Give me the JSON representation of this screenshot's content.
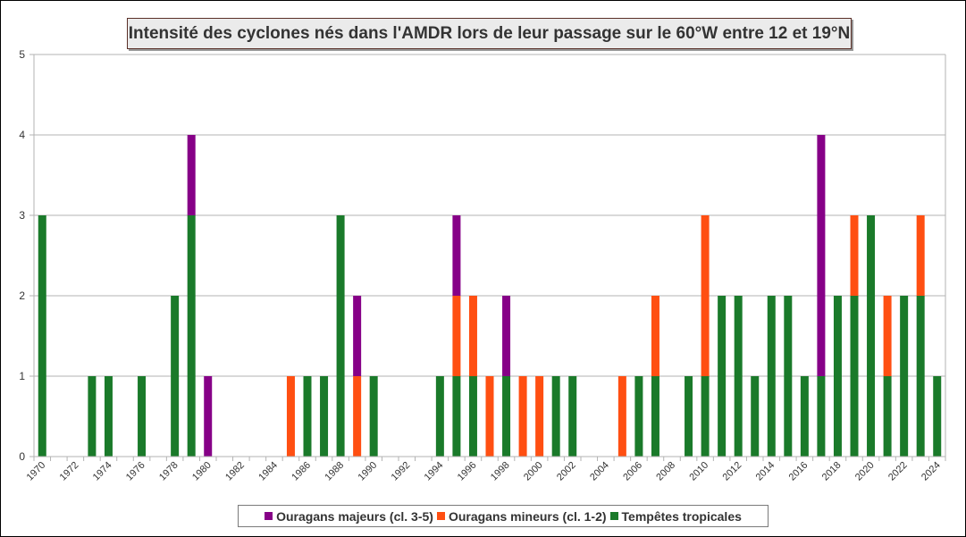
{
  "chart_data": {
    "type": "bar",
    "stacked": true,
    "title": "Intensité des cyclones nés dans l'AMDR lors de leur passage sur le 60°W entre 12 et 19°N",
    "xlabel": "",
    "ylabel": "",
    "ylim": [
      0,
      5
    ],
    "yticks": [
      "0",
      "1",
      "2",
      "3",
      "4",
      "5"
    ],
    "grid": true,
    "legend_position": "bottom",
    "categories": [
      "1970",
      "1971",
      "1972",
      "1973",
      "1974",
      "1975",
      "1976",
      "1977",
      "1978",
      "1979",
      "1980",
      "1981",
      "1982",
      "1983",
      "1984",
      "1985",
      "1986",
      "1987",
      "1988",
      "1989",
      "1990",
      "1991",
      "1992",
      "1993",
      "1994",
      "1995",
      "1996",
      "1997",
      "1998",
      "1999",
      "2000",
      "2001",
      "2002",
      "2003",
      "2004",
      "2005",
      "2006",
      "2007",
      "2008",
      "2009",
      "2010",
      "2011",
      "2012",
      "2013",
      "2014",
      "2015",
      "2016",
      "2017",
      "2018",
      "2019",
      "2020",
      "2021",
      "2022",
      "2023",
      "2024"
    ],
    "xtick_labels": [
      "1970",
      "1972",
      "1974",
      "1976",
      "1978",
      "1980",
      "1982",
      "1984",
      "1986",
      "1988",
      "1990",
      "1992",
      "1994",
      "1996",
      "1998",
      "2000",
      "2002",
      "2004",
      "2006",
      "2008",
      "2010",
      "2012",
      "2014",
      "2016",
      "2018",
      "2020",
      "2022",
      "2024"
    ],
    "series": [
      {
        "name": "Tempêtes tropicales",
        "color": "#1a7a2a",
        "values": [
          3,
          0,
          0,
          1,
          1,
          0,
          1,
          0,
          2,
          3,
          0,
          0,
          0,
          0,
          0,
          0,
          1,
          1,
          3,
          0,
          1,
          0,
          0,
          0,
          1,
          1,
          1,
          0,
          1,
          0,
          0,
          1,
          1,
          0,
          0,
          0,
          1,
          1,
          0,
          1,
          1,
          2,
          2,
          1,
          2,
          2,
          1,
          1,
          2,
          2,
          3,
          1,
          2,
          2,
          1
        ]
      },
      {
        "name": "Ouragans mineurs (cl. 1-2)",
        "color": "#ff4f12",
        "values": [
          0,
          0,
          0,
          0,
          0,
          0,
          0,
          0,
          0,
          0,
          0,
          0,
          0,
          0,
          0,
          1,
          0,
          0,
          0,
          1,
          0,
          0,
          0,
          0,
          0,
          1,
          1,
          1,
          0,
          1,
          1,
          0,
          0,
          0,
          0,
          1,
          0,
          1,
          0,
          0,
          2,
          0,
          0,
          0,
          0,
          0,
          0,
          0,
          0,
          1,
          0,
          1,
          0,
          1,
          0
        ]
      },
      {
        "name": "Ouragans majeurs (cl. 3-5)",
        "color": "#860087",
        "values": [
          0,
          0,
          0,
          0,
          0,
          0,
          0,
          0,
          0,
          1,
          1,
          0,
          0,
          0,
          0,
          0,
          0,
          0,
          0,
          1,
          0,
          0,
          0,
          0,
          0,
          1,
          0,
          0,
          1,
          0,
          0,
          0,
          0,
          0,
          0,
          0,
          0,
          0,
          0,
          0,
          0,
          0,
          0,
          0,
          0,
          0,
          0,
          3,
          0,
          0,
          0,
          0,
          0,
          0,
          0
        ]
      }
    ],
    "legend_order": [
      "Ouragans majeurs (cl. 3-5)",
      "Ouragans mineurs (cl. 1-2)",
      "Tempêtes tropicales"
    ]
  },
  "legend": {
    "major_label": "Ouragans majeurs (cl. 3-5)",
    "minor_label": "Ouragans mineurs (cl. 1-2)",
    "storm_label": "Tempêtes tropicales"
  }
}
